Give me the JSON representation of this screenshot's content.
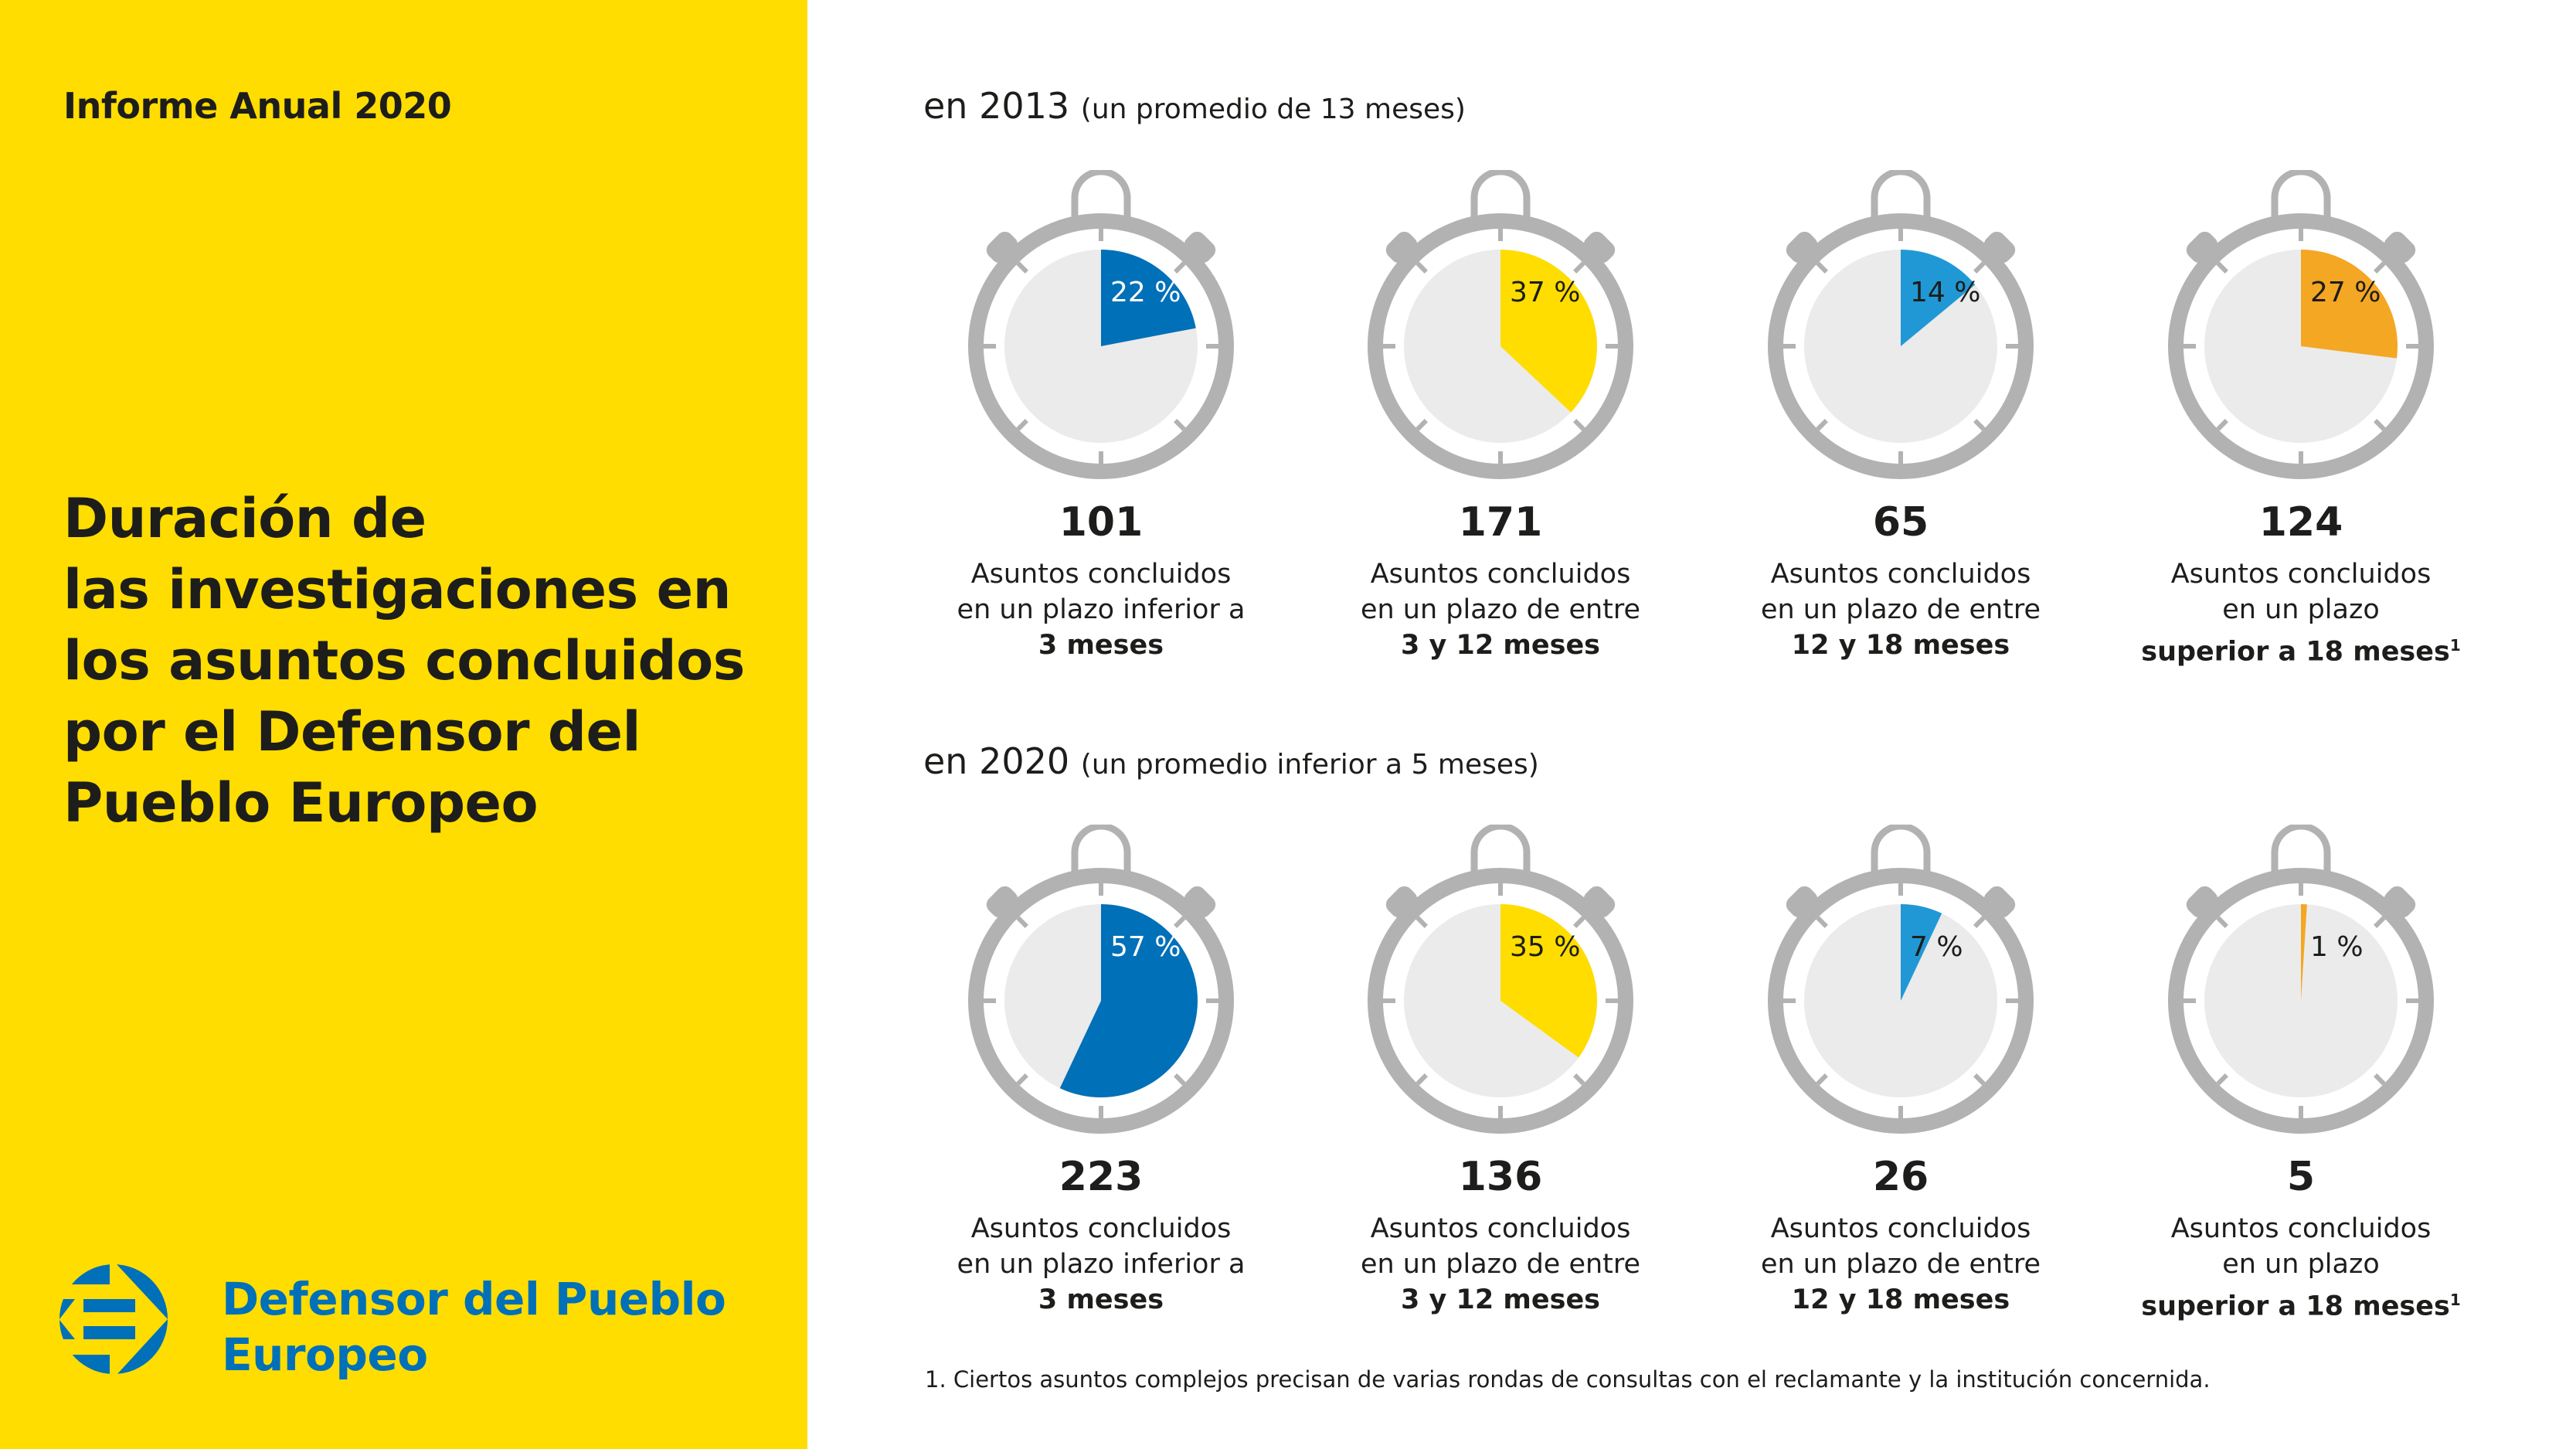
{
  "sidebar": {
    "report_label": "Informe Anual 2020",
    "title_lines": [
      "Duración de",
      "las investigaciones en",
      "los asuntos concluidos",
      "por el Defensor del",
      "Pueblo Europeo"
    ],
    "logo": {
      "icon": "european-ombudsman-logo-icon",
      "name_lines": [
        "Defensor del Pueblo",
        "Europeo"
      ]
    }
  },
  "colors": {
    "panel_yellow": "#ffdd00",
    "dark_blue": "#0070b8",
    "light_blue": "#2198d6",
    "yellow": "#ffdd00",
    "orange": "#f4a723",
    "dial_gray": "#b2b2b2",
    "face_gray": "#ebebeb",
    "text": "#1d1d1b"
  },
  "chart_data": [
    {
      "type": "pie",
      "title": "en 2013",
      "subtitle": "(un promedio de 13 meses)",
      "categories": [
        "inferior a 3 meses",
        "entre 3 y 12 meses",
        "entre 12 y 18 meses",
        "superior a 18 meses"
      ],
      "series": [
        {
          "name": "percent",
          "values": [
            22,
            37,
            14,
            27
          ]
        },
        {
          "name": "count",
          "values": [
            101,
            171,
            65,
            124
          ]
        }
      ],
      "items": [
        {
          "percent": 22,
          "percent_label": "22 %",
          "count": "101",
          "desc_line1": "Asuntos concluidos",
          "desc_line2": "en un plazo inferior a",
          "desc_bold": "3 meses",
          "footnote_mark": "",
          "color": "#0070b8",
          "label_color": "#ffffff"
        },
        {
          "percent": 37,
          "percent_label": "37 %",
          "count": "171",
          "desc_line1": "Asuntos concluidos",
          "desc_line2": "en un plazo de entre",
          "desc_bold": "3 y 12 meses",
          "footnote_mark": "",
          "color": "#ffdd00",
          "label_color": "#1d1d1b"
        },
        {
          "percent": 14,
          "percent_label": "14 %",
          "count": "65",
          "desc_line1": "Asuntos concluidos",
          "desc_line2": "en un plazo de entre",
          "desc_bold": "12 y 18 meses",
          "footnote_mark": "",
          "color": "#2198d6",
          "label_color": "#1d1d1b"
        },
        {
          "percent": 27,
          "percent_label": "27 %",
          "count": "124",
          "desc_line1": "Asuntos concluidos",
          "desc_line2": "en un plazo",
          "desc_bold": "superior a 18 meses",
          "footnote_mark": "1",
          "color": "#f4a723",
          "label_color": "#1d1d1b"
        }
      ]
    },
    {
      "type": "pie",
      "title": "en 2020",
      "subtitle": "(un promedio inferior a 5 meses)",
      "categories": [
        "inferior a 3 meses",
        "entre 3 y 12 meses",
        "entre 12 y 18 meses",
        "superior a 18 meses"
      ],
      "series": [
        {
          "name": "percent",
          "values": [
            57,
            35,
            7,
            1
          ]
        },
        {
          "name": "count",
          "values": [
            223,
            136,
            26,
            5
          ]
        }
      ],
      "items": [
        {
          "percent": 57,
          "percent_label": "57 %",
          "count": "223",
          "desc_line1": "Asuntos concluidos",
          "desc_line2": "en un plazo inferior a",
          "desc_bold": "3 meses",
          "footnote_mark": "",
          "color": "#0070b8",
          "label_color": "#ffffff"
        },
        {
          "percent": 35,
          "percent_label": "35 %",
          "count": "136",
          "desc_line1": "Asuntos concluidos",
          "desc_line2": "en un plazo de entre",
          "desc_bold": "3 y 12 meses",
          "footnote_mark": "",
          "color": "#ffdd00",
          "label_color": "#1d1d1b"
        },
        {
          "percent": 7,
          "percent_label": "7 %",
          "count": "26",
          "desc_line1": "Asuntos concluidos",
          "desc_line2": "en un plazo de entre",
          "desc_bold": "12 y 18 meses",
          "footnote_mark": "",
          "color": "#2198d6",
          "label_color": "#1d1d1b"
        },
        {
          "percent": 1,
          "percent_label": "1 %",
          "count": "5",
          "desc_line1": "Asuntos concluidos",
          "desc_line2": "en un plazo",
          "desc_bold": "superior a 18 meses",
          "footnote_mark": "1",
          "color": "#f4a723",
          "label_color": "#1d1d1b"
        }
      ]
    }
  ],
  "footnote": "1. Ciertos asuntos complejos precisan de varias rondas de consultas con el reclamante y la institución concernida."
}
